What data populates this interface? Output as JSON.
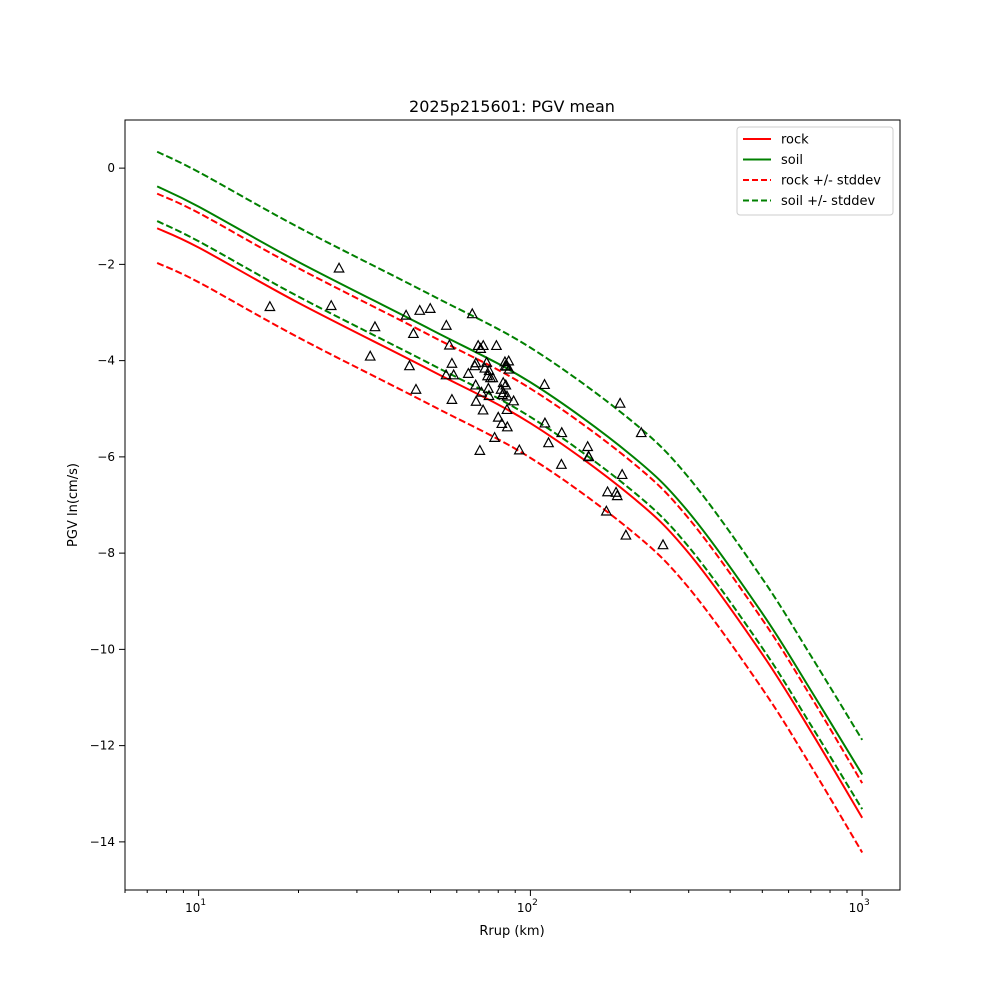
{
  "chart_data": {
    "type": "scatter",
    "title": "2025p215601: PGV mean",
    "xlabel": "Rrup (km)",
    "ylabel": "PGV ln(cm/s)",
    "xscale": "log",
    "xlim": [
      6,
      1300
    ],
    "ylim": [
      -15,
      1
    ],
    "xticks": [
      {
        "value": 10,
        "base": "10",
        "exp": "1"
      },
      {
        "value": 100,
        "base": "10",
        "exp": "2"
      },
      {
        "value": 1000,
        "base": "10",
        "exp": "3"
      }
    ],
    "yticks": [
      {
        "value": 0,
        "label": "0"
      },
      {
        "value": -2,
        "label": "−2"
      },
      {
        "value": -4,
        "label": "−4"
      },
      {
        "value": -6,
        "label": "−6"
      },
      {
        "value": -8,
        "label": "−8"
      },
      {
        "value": -10,
        "label": "−10"
      },
      {
        "value": -12,
        "label": "−12"
      },
      {
        "value": -14,
        "label": "−14"
      }
    ],
    "grid": false,
    "legend_position": "top-right",
    "series": [
      {
        "name": "rock",
        "color": "#ff0000",
        "style": "solid",
        "x": [
          7.5,
          10,
          20,
          50,
          100,
          200,
          300,
          500,
          700,
          1000
        ],
        "y": [
          -1.25,
          -1.65,
          -2.8,
          -4.2,
          -5.3,
          -6.8,
          -8.0,
          -10.1,
          -11.7,
          -13.5
        ]
      },
      {
        "name": "soil",
        "color": "#008000",
        "style": "solid",
        "x": [
          7.5,
          10,
          20,
          50,
          100,
          200,
          300,
          500,
          700,
          1000
        ],
        "y": [
          -0.38,
          -0.8,
          -1.95,
          -3.35,
          -4.45,
          -5.95,
          -7.15,
          -9.25,
          -10.85,
          -12.6
        ]
      },
      {
        "name": "rock +/- stddev",
        "color": "#ff0000",
        "style": "dashed",
        "x": [
          7.5,
          10,
          20,
          50,
          100,
          200,
          300,
          500,
          700,
          1000
        ],
        "y": [
          -0.53,
          -0.93,
          -2.08,
          -3.48,
          -4.58,
          -6.08,
          -7.28,
          -9.38,
          -10.98,
          -12.78
        ]
      },
      {
        "name": "",
        "color": "#ff0000",
        "style": "dashed",
        "x": [
          7.5,
          10,
          20,
          50,
          100,
          200,
          300,
          500,
          700,
          1000
        ],
        "y": [
          -1.97,
          -2.37,
          -3.52,
          -4.92,
          -6.02,
          -7.52,
          -8.72,
          -10.82,
          -12.42,
          -14.22
        ]
      },
      {
        "name": "soil +/- stddev",
        "color": "#008000",
        "style": "dashed",
        "x": [
          7.5,
          10,
          20,
          50,
          100,
          200,
          300,
          500,
          700,
          1000
        ],
        "y": [
          0.34,
          -0.08,
          -1.23,
          -2.63,
          -3.73,
          -5.23,
          -6.43,
          -8.53,
          -10.13,
          -11.88
        ]
      },
      {
        "name": "",
        "color": "#008000",
        "style": "dashed",
        "x": [
          7.5,
          10,
          20,
          50,
          100,
          200,
          300,
          500,
          700,
          1000
        ],
        "y": [
          -1.1,
          -1.52,
          -2.67,
          -4.07,
          -5.17,
          -6.67,
          -7.87,
          -9.97,
          -11.57,
          -13.32
        ]
      }
    ],
    "observations": {
      "marker": "open triangle",
      "points": [
        [
          16.4,
          -2.88
        ],
        [
          26.5,
          -2.08
        ],
        [
          25.1,
          -2.86
        ],
        [
          32.9,
          -3.91
        ],
        [
          34.0,
          -3.3
        ],
        [
          42.2,
          -3.06
        ],
        [
          43.2,
          -4.11
        ],
        [
          44.4,
          -3.44
        ],
        [
          45.2,
          -4.6
        ],
        [
          46.4,
          -2.96
        ],
        [
          49.9,
          -2.92
        ],
        [
          55.7,
          -4.3
        ],
        [
          55.8,
          -3.27
        ],
        [
          57.0,
          -3.68
        ],
        [
          58.0,
          -4.06
        ],
        [
          58.0,
          -4.81
        ],
        [
          58.7,
          -4.3
        ],
        [
          65.0,
          -4.27
        ],
        [
          66.8,
          -3.03
        ],
        [
          68.0,
          -4.11
        ],
        [
          68.4,
          -4.51
        ],
        [
          68.5,
          -4.05
        ],
        [
          68.6,
          -4.85
        ],
        [
          69.6,
          -3.69
        ],
        [
          70.4,
          -5.87
        ],
        [
          70.8,
          -3.75
        ],
        [
          71.2,
          -4.66
        ],
        [
          72.0,
          -5.03
        ],
        [
          72.1,
          -3.69
        ],
        [
          72.9,
          -4.16
        ],
        [
          73.8,
          -4.04
        ],
        [
          74.3,
          -4.32
        ],
        [
          74.7,
          -4.58
        ],
        [
          75.0,
          -4.73
        ],
        [
          75.1,
          -4.21
        ],
        [
          75.8,
          -4.36
        ],
        [
          77.0,
          -4.36
        ],
        [
          78.0,
          -5.6
        ],
        [
          79.0,
          -3.69
        ],
        [
          80.0,
          -5.18
        ],
        [
          81.6,
          -4.6
        ],
        [
          82.0,
          -5.31
        ],
        [
          82.3,
          -4.71
        ],
        [
          82.8,
          -4.46
        ],
        [
          83.0,
          -4.67
        ],
        [
          83.8,
          -4.03
        ],
        [
          84.0,
          -4.11
        ],
        [
          84.3,
          -4.51
        ],
        [
          84.8,
          -4.12
        ],
        [
          85.0,
          -4.74
        ],
        [
          85.0,
          -5.02
        ],
        [
          85.2,
          -5.38
        ],
        [
          86.0,
          -4.01
        ],
        [
          86.3,
          -4.18
        ],
        [
          89.0,
          -4.84
        ],
        [
          92.6,
          -5.86
        ],
        [
          110.3,
          -4.5
        ],
        [
          110.6,
          -5.3
        ],
        [
          113.4,
          -5.71
        ],
        [
          124.0,
          -6.16
        ],
        [
          124.3,
          -5.5
        ],
        [
          148.8,
          -5.79
        ],
        [
          149.7,
          -5.99
        ],
        [
          150.0,
          -6.0
        ],
        [
          169.4,
          -7.13
        ],
        [
          170.8,
          -6.73
        ],
        [
          181.2,
          -6.74
        ],
        [
          182.7,
          -6.81
        ],
        [
          186.4,
          -4.89
        ],
        [
          189.0,
          -6.37
        ],
        [
          194.0,
          -7.63
        ],
        [
          215.8,
          -5.5
        ],
        [
          251.0,
          -7.83
        ]
      ]
    }
  }
}
